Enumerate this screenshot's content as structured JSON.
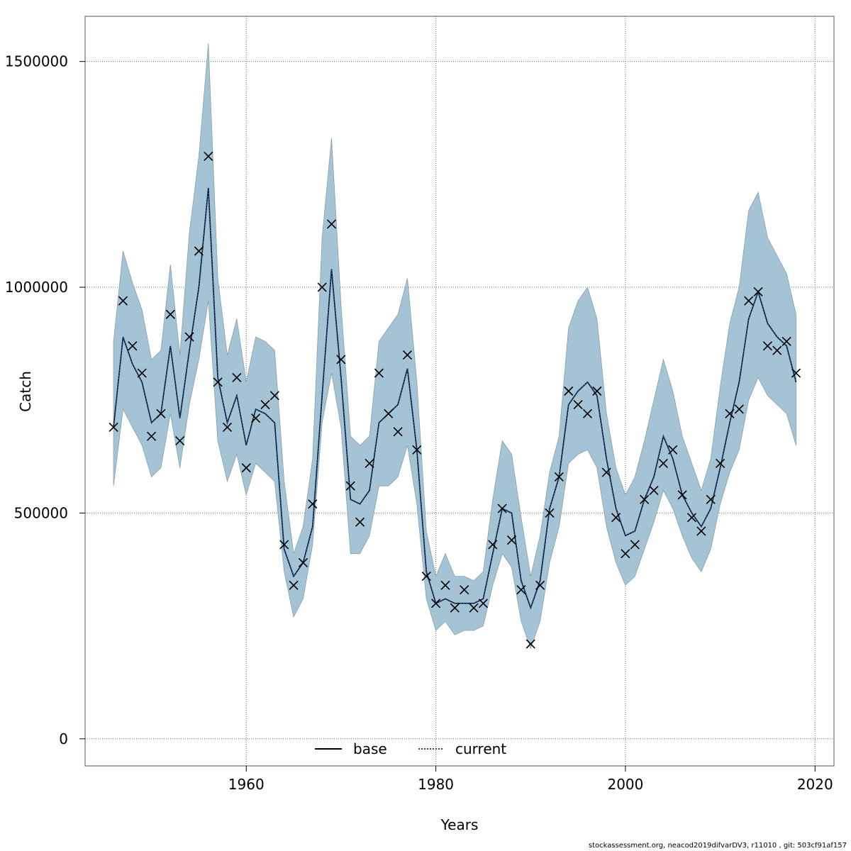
{
  "chart_data": {
    "type": "line",
    "xlabel": "Years",
    "ylabel": "Catch",
    "xlim": [
      1943,
      2022
    ],
    "ylim": [
      -60000,
      1600000
    ],
    "x_ticks": [
      1960,
      1980,
      2000,
      2020
    ],
    "y_ticks": [
      0,
      500000,
      1000000,
      1500000
    ],
    "x_tick_labels": [
      "1960",
      "1980",
      "2000",
      "2020"
    ],
    "y_tick_labels": [
      "0",
      "500000",
      "1000000",
      "1500000"
    ],
    "grid": true,
    "legend": {
      "position": "bottom-center",
      "entries": [
        {
          "label": "base",
          "style": "solid"
        },
        {
          "label": "current",
          "style": "dotted"
        }
      ]
    },
    "colors": {
      "band": "#a4c3d4",
      "band_edge": "#8aa0aa",
      "current_line": "#1f4e8c",
      "base_line": "#000000",
      "grid": "#666666"
    },
    "years": [
      1946,
      1947,
      1948,
      1949,
      1950,
      1951,
      1952,
      1953,
      1954,
      1955,
      1956,
      1957,
      1958,
      1959,
      1960,
      1961,
      1962,
      1963,
      1964,
      1965,
      1966,
      1967,
      1968,
      1969,
      1970,
      1971,
      1972,
      1973,
      1974,
      1975,
      1976,
      1977,
      1978,
      1979,
      1980,
      1981,
      1982,
      1983,
      1984,
      1985,
      1986,
      1987,
      1988,
      1989,
      1990,
      1991,
      1992,
      1993,
      1994,
      1995,
      1996,
      1997,
      1998,
      1999,
      2000,
      2001,
      2002,
      2003,
      2004,
      2005,
      2006,
      2007,
      2008,
      2009,
      2010,
      2011,
      2012,
      2013,
      2014,
      2015,
      2016,
      2017,
      2018
    ],
    "series": [
      {
        "name": "current",
        "values": [
          690000,
          890000,
          830000,
          790000,
          700000,
          720000,
          870000,
          710000,
          860000,
          1000000,
          1220000,
          800000,
          700000,
          760000,
          650000,
          730000,
          720000,
          700000,
          420000,
          360000,
          390000,
          470000,
          760000,
          1040000,
          800000,
          530000,
          520000,
          550000,
          700000,
          720000,
          740000,
          820000,
          640000,
          370000,
          300000,
          310000,
          300000,
          300000,
          300000,
          310000,
          410000,
          510000,
          500000,
          350000,
          290000,
          350000,
          510000,
          580000,
          740000,
          770000,
          790000,
          760000,
          620000,
          510000,
          450000,
          460000,
          530000,
          580000,
          670000,
          620000,
          540000,
          500000,
          470000,
          510000,
          600000,
          700000,
          790000,
          930000,
          990000,
          920000,
          890000,
          870000,
          790000
        ],
        "lower": [
          560000,
          730000,
          690000,
          650000,
          580000,
          600000,
          720000,
          600000,
          740000,
          840000,
          970000,
          660000,
          570000,
          630000,
          540000,
          610000,
          590000,
          570000,
          370000,
          270000,
          310000,
          430000,
          700000,
          810000,
          690000,
          410000,
          410000,
          450000,
          560000,
          560000,
          580000,
          650000,
          520000,
          310000,
          240000,
          260000,
          230000,
          240000,
          240000,
          250000,
          340000,
          410000,
          380000,
          260000,
          200000,
          260000,
          390000,
          470000,
          610000,
          630000,
          640000,
          600000,
          470000,
          390000,
          340000,
          360000,
          420000,
          480000,
          550000,
          510000,
          450000,
          400000,
          370000,
          420000,
          520000,
          590000,
          640000,
          750000,
          800000,
          760000,
          740000,
          720000,
          650000
        ],
        "upper": [
          880000,
          1080000,
          1010000,
          950000,
          840000,
          860000,
          1050000,
          850000,
          1120000,
          1290000,
          1540000,
          1020000,
          850000,
          930000,
          790000,
          890000,
          880000,
          860000,
          570000,
          410000,
          470000,
          620000,
          1110000,
          1330000,
          960000,
          670000,
          650000,
          670000,
          880000,
          910000,
          940000,
          1020000,
          790000,
          460000,
          360000,
          410000,
          360000,
          360000,
          350000,
          370000,
          530000,
          660000,
          630000,
          490000,
          360000,
          450000,
          590000,
          670000,
          910000,
          970000,
          1000000,
          930000,
          720000,
          600000,
          540000,
          580000,
          660000,
          750000,
          840000,
          770000,
          670000,
          610000,
          550000,
          620000,
          780000,
          920000,
          1000000,
          1170000,
          1210000,
          1110000,
          1070000,
          1030000,
          940000
        ]
      },
      {
        "name": "observed",
        "values": [
          690000,
          970000,
          870000,
          810000,
          670000,
          720000,
          940000,
          660000,
          890000,
          1080000,
          1290000,
          790000,
          690000,
          800000,
          600000,
          710000,
          740000,
          760000,
          430000,
          340000,
          390000,
          520000,
          1000000,
          1140000,
          840000,
          560000,
          480000,
          610000,
          810000,
          720000,
          680000,
          850000,
          640000,
          360000,
          300000,
          340000,
          290000,
          330000,
          290000,
          300000,
          430000,
          510000,
          440000,
          330000,
          210000,
          340000,
          500000,
          580000,
          770000,
          740000,
          720000,
          770000,
          590000,
          490000,
          410000,
          430000,
          530000,
          550000,
          610000,
          640000,
          540000,
          490000,
          460000,
          530000,
          610000,
          720000,
          730000,
          970000,
          990000,
          870000,
          860000,
          880000,
          810000
        ]
      }
    ]
  },
  "footer": "stockassessment.org, neacod2019difvarDV3, r11010 , git: 503cf91af157"
}
